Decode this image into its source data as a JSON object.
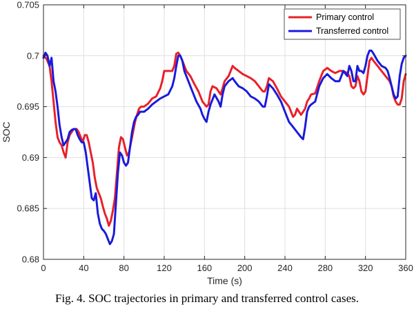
{
  "caption": "Fig. 4. SOC trajectories in primary and transferred control cases.",
  "chart_data": {
    "type": "line",
    "xlabel": "Time (s)",
    "ylabel": "SOC",
    "xlim": [
      0,
      360
    ],
    "ylim": [
      0.68,
      0.705
    ],
    "xticks": [
      0,
      40,
      80,
      120,
      160,
      200,
      240,
      280,
      320,
      360
    ],
    "yticks": [
      0.68,
      0.685,
      0.69,
      0.695,
      0.7,
      0.705
    ],
    "ytick_labels": [
      "0.68",
      "0.685",
      "0.69",
      "0.695",
      "0.7",
      "0.705"
    ],
    "grid": true,
    "legend_position": "top-right",
    "series": [
      {
        "name": "Primary control",
        "color": "#e8202a",
        "points": [
          [
            0,
            0.7
          ],
          [
            3,
            0.6997
          ],
          [
            6,
            0.699
          ],
          [
            8,
            0.6975
          ],
          [
            10,
            0.6955
          ],
          [
            12,
            0.6935
          ],
          [
            14,
            0.692
          ],
          [
            16,
            0.6915
          ],
          [
            18,
            0.6912
          ],
          [
            20,
            0.6905
          ],
          [
            22,
            0.69
          ],
          [
            24,
            0.6915
          ],
          [
            26,
            0.6922
          ],
          [
            28,
            0.6925
          ],
          [
            30,
            0.6928
          ],
          [
            33,
            0.6928
          ],
          [
            35,
            0.6925
          ],
          [
            37,
            0.692
          ],
          [
            39,
            0.6915
          ],
          [
            41,
            0.6922
          ],
          [
            43,
            0.6922
          ],
          [
            45,
            0.6915
          ],
          [
            47,
            0.6905
          ],
          [
            49,
            0.6895
          ],
          [
            51,
            0.688
          ],
          [
            53,
            0.687
          ],
          [
            55,
            0.6865
          ],
          [
            57,
            0.686
          ],
          [
            59,
            0.6852
          ],
          [
            61,
            0.6845
          ],
          [
            63,
            0.684
          ],
          [
            65,
            0.6833
          ],
          [
            67,
            0.6838
          ],
          [
            69,
            0.6848
          ],
          [
            71,
            0.686
          ],
          [
            73,
            0.6885
          ],
          [
            75,
            0.691
          ],
          [
            77,
            0.692
          ],
          [
            79,
            0.6918
          ],
          [
            81,
            0.691
          ],
          [
            83,
            0.6902
          ],
          [
            85,
            0.6905
          ],
          [
            87,
            0.6915
          ],
          [
            89,
            0.6925
          ],
          [
            91,
            0.6935
          ],
          [
            93,
            0.6942
          ],
          [
            95,
            0.6948
          ],
          [
            97,
            0.695
          ],
          [
            100,
            0.695
          ],
          [
            104,
            0.6953
          ],
          [
            108,
            0.6958
          ],
          [
            112,
            0.696
          ],
          [
            116,
            0.6968
          ],
          [
            118,
            0.6975
          ],
          [
            120,
            0.6985
          ],
          [
            124,
            0.6985
          ],
          [
            128,
            0.6985
          ],
          [
            130,
            0.699
          ],
          [
            132,
            0.7002
          ],
          [
            134,
            0.7003
          ],
          [
            136,
            0.7
          ],
          [
            138,
            0.6995
          ],
          [
            140,
            0.699
          ],
          [
            142,
            0.6985
          ],
          [
            146,
            0.698
          ],
          [
            150,
            0.6972
          ],
          [
            154,
            0.6965
          ],
          [
            158,
            0.6955
          ],
          [
            162,
            0.695
          ],
          [
            164,
            0.6952
          ],
          [
            166,
            0.6965
          ],
          [
            168,
            0.697
          ],
          [
            172,
            0.6968
          ],
          [
            176,
            0.6962
          ],
          [
            178,
            0.6968
          ],
          [
            180,
            0.6975
          ],
          [
            184,
            0.698
          ],
          [
            186,
            0.6985
          ],
          [
            188,
            0.699
          ],
          [
            190,
            0.6988
          ],
          [
            194,
            0.6985
          ],
          [
            198,
            0.6982
          ],
          [
            202,
            0.698
          ],
          [
            206,
            0.6978
          ],
          [
            210,
            0.6975
          ],
          [
            214,
            0.697
          ],
          [
            218,
            0.6965
          ],
          [
            220,
            0.6965
          ],
          [
            222,
            0.697
          ],
          [
            224,
            0.6978
          ],
          [
            228,
            0.6975
          ],
          [
            232,
            0.6968
          ],
          [
            236,
            0.696
          ],
          [
            240,
            0.6955
          ],
          [
            244,
            0.695
          ],
          [
            246,
            0.6945
          ],
          [
            248,
            0.694
          ],
          [
            250,
            0.6942
          ],
          [
            252,
            0.6948
          ],
          [
            254,
            0.6945
          ],
          [
            256,
            0.6942
          ],
          [
            258,
            0.6945
          ],
          [
            260,
            0.6948
          ],
          [
            262,
            0.6955
          ],
          [
            264,
            0.6958
          ],
          [
            266,
            0.6962
          ],
          [
            270,
            0.6963
          ],
          [
            274,
            0.6975
          ],
          [
            278,
            0.6985
          ],
          [
            282,
            0.6988
          ],
          [
            286,
            0.6985
          ],
          [
            290,
            0.6983
          ],
          [
            294,
            0.6985
          ],
          [
            298,
            0.6985
          ],
          [
            302,
            0.6983
          ],
          [
            304,
            0.698
          ],
          [
            306,
            0.697
          ],
          [
            308,
            0.6968
          ],
          [
            310,
            0.697
          ],
          [
            312,
            0.698
          ],
          [
            314,
            0.6975
          ],
          [
            316,
            0.6965
          ],
          [
            318,
            0.6962
          ],
          [
            320,
            0.6965
          ],
          [
            322,
            0.698
          ],
          [
            324,
            0.6995
          ],
          [
            326,
            0.6998
          ],
          [
            328,
            0.6995
          ],
          [
            332,
            0.699
          ],
          [
            336,
            0.6985
          ],
          [
            340,
            0.698
          ],
          [
            344,
            0.6975
          ],
          [
            346,
            0.697
          ],
          [
            348,
            0.696
          ],
          [
            350,
            0.6955
          ],
          [
            352,
            0.6952
          ],
          [
            354,
            0.6952
          ],
          [
            356,
            0.6958
          ],
          [
            358,
            0.6975
          ],
          [
            360,
            0.6982
          ]
        ]
      },
      {
        "name": "Transferred control",
        "color": "#1a1adb",
        "points": [
          [
            0,
            0.6998
          ],
          [
            2,
            0.7003
          ],
          [
            4,
            0.7
          ],
          [
            6,
            0.699
          ],
          [
            8,
            0.6998
          ],
          [
            10,
            0.6975
          ],
          [
            12,
            0.6965
          ],
          [
            14,
            0.695
          ],
          [
            16,
            0.6932
          ],
          [
            18,
            0.692
          ],
          [
            20,
            0.6912
          ],
          [
            22,
            0.6915
          ],
          [
            24,
            0.6918
          ],
          [
            26,
            0.6925
          ],
          [
            28,
            0.6927
          ],
          [
            30,
            0.6928
          ],
          [
            32,
            0.6928
          ],
          [
            34,
            0.6922
          ],
          [
            36,
            0.6918
          ],
          [
            38,
            0.6915
          ],
          [
            40,
            0.6915
          ],
          [
            42,
            0.6905
          ],
          [
            44,
            0.689
          ],
          [
            46,
            0.6875
          ],
          [
            48,
            0.686
          ],
          [
            50,
            0.6858
          ],
          [
            52,
            0.6865
          ],
          [
            54,
            0.6845
          ],
          [
            56,
            0.6835
          ],
          [
            58,
            0.683
          ],
          [
            60,
            0.6828
          ],
          [
            62,
            0.6825
          ],
          [
            64,
            0.682
          ],
          [
            66,
            0.6815
          ],
          [
            68,
            0.6818
          ],
          [
            70,
            0.6825
          ],
          [
            72,
            0.6855
          ],
          [
            74,
            0.6885
          ],
          [
            76,
            0.6905
          ],
          [
            78,
            0.6902
          ],
          [
            80,
            0.6895
          ],
          [
            82,
            0.6892
          ],
          [
            84,
            0.6895
          ],
          [
            86,
            0.691
          ],
          [
            88,
            0.6925
          ],
          [
            90,
            0.6935
          ],
          [
            92,
            0.694
          ],
          [
            94,
            0.6942
          ],
          [
            96,
            0.6945
          ],
          [
            100,
            0.6945
          ],
          [
            104,
            0.6948
          ],
          [
            108,
            0.6952
          ],
          [
            112,
            0.6955
          ],
          [
            116,
            0.6958
          ],
          [
            120,
            0.696
          ],
          [
            124,
            0.6962
          ],
          [
            128,
            0.697
          ],
          [
            130,
            0.6978
          ],
          [
            132,
            0.699
          ],
          [
            134,
            0.7
          ],
          [
            136,
            0.7
          ],
          [
            138,
            0.6995
          ],
          [
            140,
            0.6985
          ],
          [
            144,
            0.6975
          ],
          [
            148,
            0.6965
          ],
          [
            152,
            0.6955
          ],
          [
            156,
            0.6948
          ],
          [
            158,
            0.6942
          ],
          [
            160,
            0.6938
          ],
          [
            162,
            0.6935
          ],
          [
            164,
            0.6945
          ],
          [
            166,
            0.6952
          ],
          [
            170,
            0.6962
          ],
          [
            174,
            0.6955
          ],
          [
            176,
            0.695
          ],
          [
            178,
            0.6962
          ],
          [
            180,
            0.697
          ],
          [
            184,
            0.6975
          ],
          [
            188,
            0.6978
          ],
          [
            190,
            0.6975
          ],
          [
            194,
            0.697
          ],
          [
            198,
            0.6968
          ],
          [
            202,
            0.6965
          ],
          [
            206,
            0.696
          ],
          [
            210,
            0.6958
          ],
          [
            214,
            0.6955
          ],
          [
            218,
            0.695
          ],
          [
            220,
            0.695
          ],
          [
            222,
            0.696
          ],
          [
            224,
            0.6972
          ],
          [
            228,
            0.6968
          ],
          [
            232,
            0.6962
          ],
          [
            236,
            0.6955
          ],
          [
            240,
            0.6945
          ],
          [
            244,
            0.6935
          ],
          [
            248,
            0.693
          ],
          [
            252,
            0.6925
          ],
          [
            256,
            0.692
          ],
          [
            258,
            0.6918
          ],
          [
            260,
            0.693
          ],
          [
            262,
            0.6945
          ],
          [
            264,
            0.695
          ],
          [
            266,
            0.6952
          ],
          [
            270,
            0.6955
          ],
          [
            274,
            0.697
          ],
          [
            278,
            0.6978
          ],
          [
            282,
            0.6982
          ],
          [
            286,
            0.6978
          ],
          [
            290,
            0.6975
          ],
          [
            294,
            0.6975
          ],
          [
            298,
            0.6985
          ],
          [
            302,
            0.698
          ],
          [
            304,
            0.699
          ],
          [
            306,
            0.6985
          ],
          [
            308,
            0.6975
          ],
          [
            310,
            0.6975
          ],
          [
            312,
            0.699
          ],
          [
            314,
            0.6985
          ],
          [
            316,
            0.6985
          ],
          [
            318,
            0.6983
          ],
          [
            320,
            0.699
          ],
          [
            322,
            0.7
          ],
          [
            324,
            0.7005
          ],
          [
            326,
            0.7005
          ],
          [
            328,
            0.7002
          ],
          [
            332,
            0.6995
          ],
          [
            336,
            0.699
          ],
          [
            340,
            0.6988
          ],
          [
            342,
            0.6985
          ],
          [
            344,
            0.6978
          ],
          [
            346,
            0.697
          ],
          [
            348,
            0.6962
          ],
          [
            350,
            0.6958
          ],
          [
            352,
            0.696
          ],
          [
            354,
            0.698
          ],
          [
            356,
            0.6992
          ],
          [
            358,
            0.6998
          ],
          [
            360,
            0.7
          ]
        ]
      }
    ]
  }
}
